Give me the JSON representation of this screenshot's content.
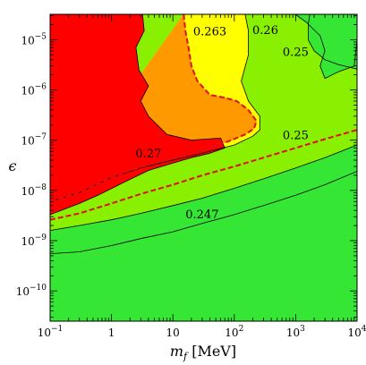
{
  "chart_data": {
    "type": "contour",
    "xlabel_var": "m",
    "xlabel_sub": "f",
    "xlabel_unit": " [MeV]",
    "ylabel": "ϵ",
    "x_scale": "log",
    "y_scale": "log",
    "xlim": [
      0.1,
      10000
    ],
    "ylim": [
      2.5e-11,
      3.2e-05
    ],
    "x_ticks": [
      {
        "value": 0.1,
        "base": "10",
        "exp": "−1"
      },
      {
        "value": 1,
        "plain": "1"
      },
      {
        "value": 10,
        "plain": "10"
      },
      {
        "value": 100,
        "base": "10",
        "exp": "2"
      },
      {
        "value": 1000,
        "base": "10",
        "exp": "3"
      },
      {
        "value": 10000,
        "base": "10",
        "exp": "4"
      }
    ],
    "y_ticks": [
      {
        "value": 1e-10,
        "base": "10",
        "exp": "−10"
      },
      {
        "value": 1e-09,
        "base": "10",
        "exp": "−9"
      },
      {
        "value": 1e-08,
        "base": "10",
        "exp": "−8"
      },
      {
        "value": 1e-07,
        "base": "10",
        "exp": "−7"
      },
      {
        "value": 1e-06,
        "base": "10",
        "exp": "−6"
      },
      {
        "value": 1e-05,
        "base": "10",
        "exp": "−5"
      }
    ],
    "regions": [
      {
        "color": "#35e635",
        "points": [
          [
            0.1,
            3.2e-05
          ],
          [
            10000,
            3.2e-05
          ],
          [
            10000,
            2.5e-11
          ],
          [
            0.1,
            2.5e-11
          ]
        ]
      },
      {
        "color": "#88f000",
        "points": [
          [
            0.1,
            1.6e-09
          ],
          [
            0.3,
            2e-09
          ],
          [
            1,
            2.6e-09
          ],
          [
            3,
            3.5e-09
          ],
          [
            10,
            5e-09
          ],
          [
            30,
            7e-09
          ],
          [
            100,
            1.1e-08
          ],
          [
            300,
            1.7e-08
          ],
          [
            1000,
            2.8e-08
          ],
          [
            3000,
            4.5e-08
          ],
          [
            10000,
            8e-08
          ],
          [
            10000,
            2.6e-06
          ],
          [
            5000,
            3.2e-06
          ],
          [
            3000,
            4e-06
          ],
          [
            2000,
            6e-06
          ],
          [
            1600,
            1e-05
          ],
          [
            1600,
            2e-05
          ],
          [
            1700,
            3.2e-05
          ],
          [
            0.1,
            3.2e-05
          ]
        ]
      },
      {
        "color": "#ffff00",
        "points": [
          [
            15,
            3.2e-05
          ],
          [
            150,
            3.2e-05
          ],
          [
            170,
            1.5e-05
          ],
          [
            170,
            5e-06
          ],
          [
            130,
            1.5e-06
          ],
          [
            170,
            6e-07
          ],
          [
            260,
            3e-07
          ],
          [
            260,
            1.6e-07
          ],
          [
            200,
            1.2e-07
          ],
          [
            100,
            8e-08
          ],
          [
            30,
            5.5e-08
          ],
          [
            10,
            4e-08
          ],
          [
            3,
            2.8e-08
          ],
          [
            1,
            1.8e-08
          ],
          [
            0.3,
            9e-09
          ],
          [
            0.1,
            6e-09
          ]
        ]
      },
      {
        "color": "#ff9900",
        "points": [
          [
            15,
            3.2e-05
          ],
          [
            16,
            1.5e-05
          ],
          [
            18,
            7e-06
          ],
          [
            20,
            3e-06
          ],
          [
            25,
            1.5e-06
          ],
          [
            40,
            8e-07
          ],
          [
            70,
            7e-07
          ],
          [
            110,
            6e-07
          ],
          [
            170,
            4e-07
          ],
          [
            230,
            2.4e-07
          ],
          [
            210,
            1.7e-07
          ],
          [
            150,
            1.3e-07
          ],
          [
            90,
            1e-07
          ],
          [
            40,
            7e-08
          ],
          [
            15,
            5e-08
          ],
          [
            5,
            3.5e-08
          ],
          [
            2,
            2.5e-08
          ],
          [
            1,
            1.8e-08
          ],
          [
            0.3,
            9e-09
          ],
          [
            0.1,
            6e-09
          ]
        ]
      },
      {
        "color": "#ff0000",
        "points": [
          [
            0.1,
            3.2e-05
          ],
          [
            3.2,
            3.2e-05
          ],
          [
            3.4,
            1.5e-05
          ],
          [
            2.5,
            7e-06
          ],
          [
            2.8,
            2.5e-06
          ],
          [
            4,
            1.2e-06
          ],
          [
            3,
            6e-07
          ],
          [
            4,
            3e-07
          ],
          [
            8,
            1.3e-07
          ],
          [
            20,
            1e-07
          ],
          [
            60,
            1.1e-07
          ],
          [
            70,
            7e-08
          ],
          [
            40,
            5.5e-08
          ],
          [
            20,
            4.5e-08
          ],
          [
            10,
            3.5e-08
          ],
          [
            4,
            2.5e-08
          ],
          [
            1.5,
            1.4e-08
          ],
          [
            0.6,
            8e-09
          ],
          [
            0.3,
            5.5e-09
          ],
          [
            0.1,
            3.3e-09
          ]
        ]
      },
      {
        "color": "#35e635",
        "points": [
          [
            1000,
            3.2e-05
          ],
          [
            10000,
            3.2e-05
          ],
          [
            10000,
            1e-05
          ],
          [
            9000,
            3e-06
          ],
          [
            5000,
            2.3e-06
          ],
          [
            3000,
            1.7e-06
          ],
          [
            2500,
            3e-06
          ],
          [
            3000,
            6e-06
          ],
          [
            2500,
            1.2e-05
          ],
          [
            1500,
            2.2e-05
          ],
          [
            900,
            3.2e-05
          ]
        ]
      }
    ],
    "lines": [
      {
        "color": "#000000",
        "width": 0.8,
        "points": [
          [
            0.1,
            3.3e-09
          ],
          [
            0.3,
            5.5e-09
          ],
          [
            0.6,
            8e-09
          ],
          [
            1.5,
            1.4e-08
          ],
          [
            4,
            2.5e-08
          ],
          [
            10,
            3.5e-08
          ],
          [
            20,
            4.5e-08
          ],
          [
            40,
            5.5e-08
          ],
          [
            70,
            7e-08
          ],
          [
            60,
            1.1e-07
          ],
          [
            20,
            1e-07
          ],
          [
            8,
            1.3e-07
          ],
          [
            4,
            3e-07
          ],
          [
            3,
            6e-07
          ],
          [
            4,
            1.2e-06
          ],
          [
            2.8,
            2.5e-06
          ],
          [
            2.5,
            7e-06
          ],
          [
            3.4,
            1.5e-05
          ],
          [
            3.2,
            3.2e-05
          ]
        ]
      },
      {
        "color": "#000000",
        "width": 0.8,
        "points": [
          [
            0.1,
            1.6e-09
          ],
          [
            0.3,
            2e-09
          ],
          [
            1,
            2.6e-09
          ],
          [
            3,
            3.5e-09
          ],
          [
            10,
            5e-09
          ],
          [
            30,
            7e-09
          ],
          [
            100,
            1.1e-08
          ],
          [
            300,
            1.7e-08
          ],
          [
            1000,
            2.8e-08
          ],
          [
            3000,
            4.5e-08
          ],
          [
            10000,
            8e-08
          ]
        ]
      },
      {
        "color": "#000000",
        "width": 0.8,
        "points": [
          [
            0.1,
            5.5e-10
          ],
          [
            0.3,
            6e-10
          ],
          [
            1,
            8e-10
          ],
          [
            3,
            1.1e-09
          ],
          [
            10,
            1.5e-09
          ],
          [
            30,
            2.2e-09
          ],
          [
            100,
            3.3e-09
          ],
          [
            300,
            5e-09
          ],
          [
            1000,
            8e-09
          ],
          [
            3000,
            1.3e-08
          ],
          [
            10000,
            2.4e-08
          ]
        ]
      },
      {
        "color": "#000000",
        "width": 0.8,
        "points": [
          [
            10000,
            2.6e-06
          ],
          [
            5000,
            3.2e-06
          ],
          [
            3000,
            4e-06
          ],
          [
            2000,
            6e-06
          ],
          [
            1600,
            1e-05
          ],
          [
            1600,
            2e-05
          ],
          [
            1700,
            3.2e-05
          ]
        ]
      },
      {
        "color": "#000000",
        "width": 0.8,
        "points": [
          [
            1000,
            3.2e-05
          ],
          [
            1500,
            2.2e-05
          ],
          [
            2500,
            1.2e-05
          ],
          [
            3000,
            6e-06
          ],
          [
            2500,
            3e-06
          ],
          [
            3000,
            1.7e-06
          ],
          [
            5000,
            2.3e-06
          ],
          [
            9000,
            3e-06
          ],
          [
            10000,
            1e-05
          ]
        ]
      },
      {
        "color": "#000000",
        "width": 0.8,
        "points": [
          [
            150,
            3.2e-05
          ],
          [
            170,
            1.5e-05
          ],
          [
            170,
            5e-06
          ],
          [
            130,
            1.5e-06
          ],
          [
            170,
            6e-07
          ],
          [
            260,
            3e-07
          ],
          [
            260,
            1.6e-07
          ],
          [
            200,
            1.2e-07
          ],
          [
            100,
            8e-08
          ],
          [
            30,
            5.5e-08
          ],
          [
            10,
            4e-08
          ],
          [
            3,
            2.8e-08
          ],
          [
            1,
            1.8e-08
          ],
          [
            0.3,
            9e-09
          ],
          [
            0.1,
            6e-09
          ]
        ]
      },
      {
        "color": "#dd1111",
        "width": 2,
        "dashed": true,
        "points": [
          [
            15,
            3.2e-05
          ],
          [
            16,
            1.5e-05
          ],
          [
            18,
            7e-06
          ],
          [
            20,
            3e-06
          ],
          [
            25,
            1.5e-06
          ],
          [
            40,
            8e-07
          ],
          [
            70,
            7e-07
          ],
          [
            110,
            6e-07
          ],
          [
            170,
            4e-07
          ],
          [
            230,
            2.4e-07
          ],
          [
            210,
            1.7e-07
          ],
          [
            150,
            1.3e-07
          ],
          [
            90,
            1e-07
          ],
          [
            40,
            7e-08
          ],
          [
            15,
            5e-08
          ],
          [
            5,
            3.5e-08
          ],
          [
            2,
            2.5e-08
          ],
          [
            1,
            1.8e-08
          ],
          [
            0.3,
            9e-09
          ],
          [
            0.1,
            6e-09
          ]
        ]
      },
      {
        "color": "#dd1111",
        "width": 2,
        "dashed": true,
        "points": [
          [
            0.1,
            2.6e-09
          ],
          [
            0.3,
            3.5e-09
          ],
          [
            1,
            5.5e-09
          ],
          [
            3,
            8.5e-09
          ],
          [
            10,
            1.3e-08
          ],
          [
            30,
            2e-08
          ],
          [
            100,
            3e-08
          ],
          [
            300,
            4.5e-08
          ],
          [
            1000,
            7e-08
          ],
          [
            3000,
            1.05e-07
          ],
          [
            10000,
            1.6e-07
          ]
        ]
      }
    ],
    "labels": [
      {
        "text": "0.263",
        "x": 40,
        "y": 1.5e-05
      },
      {
        "text": "0.26",
        "x": 320,
        "y": 1.6e-05
      },
      {
        "text": "0.25",
        "x": 1000,
        "y": 5.8e-06
      },
      {
        "text": "0.25",
        "x": 1000,
        "y": 1.3e-07
      },
      {
        "text": "0.27",
        "x": 4,
        "y": 5.6e-08
      },
      {
        "text": "0.247",
        "x": 30,
        "y": 3.4e-09
      }
    ]
  }
}
